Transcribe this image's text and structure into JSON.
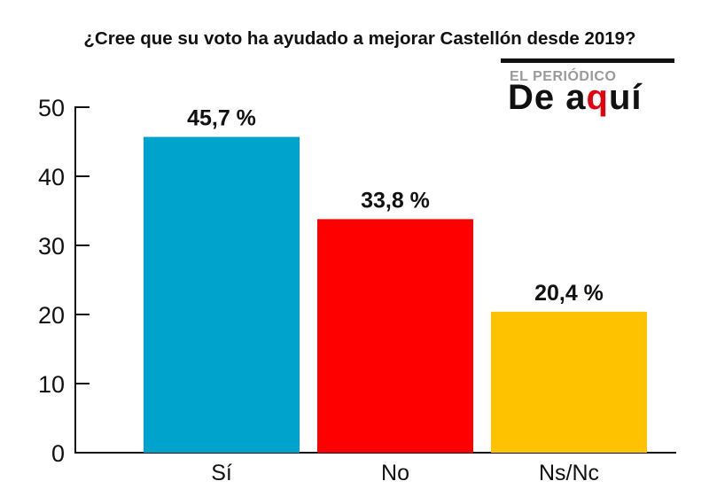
{
  "chart_data": {
    "type": "bar",
    "title": "¿Cree que su voto ha ayudado a mejorar Castellón desde 2019?",
    "categories": [
      "Sí",
      "No",
      "Ns/Nc"
    ],
    "values": [
      45.7,
      33.8,
      20.4
    ],
    "data_labels": [
      "45,7 %",
      "33,8 %",
      "20,4 %"
    ],
    "colors": [
      "#00a3cc",
      "#ff0000",
      "#ffc200"
    ],
    "yticks": [
      "0",
      "10",
      "20",
      "30",
      "40",
      "50"
    ],
    "ylim": [
      0,
      50
    ],
    "grid": false,
    "legend": "none"
  },
  "logo": {
    "line1": "EL PERIÓDICO",
    "line2a": "De a",
    "line2b": "q",
    "line2c": "uí",
    "accent_color": "#e3000f"
  }
}
